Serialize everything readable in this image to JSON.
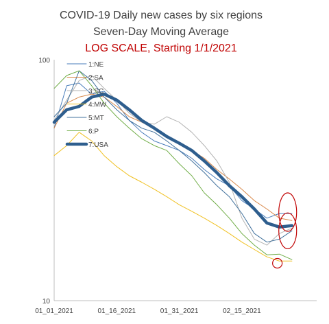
{
  "chart_data": {
    "type": "line",
    "title": "COVID-19 Daily new cases by six regions",
    "subtitle": "Seven-Day Moving Average",
    "note": "LOG SCALE, Starting 1/1/2021",
    "xlabel": "",
    "ylabel": "",
    "y_scale": "log",
    "ylim": [
      10,
      100
    ],
    "y_ticks": [
      {
        "value": 10,
        "label": "10"
      },
      {
        "value": 100,
        "label": "100"
      }
    ],
    "x_range": [
      "01_01_2021",
      "02_28_2021"
    ],
    "x_ticks": [
      {
        "x": "01_01_2021",
        "label": "01_01_2021"
      },
      {
        "x": "01_16_2021",
        "label": "01_16_2021"
      },
      {
        "x": "01_31_2021",
        "label": "01_31_2021"
      },
      {
        "x": "02_15_2021",
        "label": "02_15_2021"
      }
    ],
    "legend": "top-left",
    "grid": false,
    "series": [
      {
        "name": "1:NE",
        "color": "#4a7ebb",
        "width": 1,
        "x": [
          "01_01_2021",
          "01_04_2021",
          "01_07_2021",
          "01_10_2021",
          "01_13_2021",
          "01_16_2021",
          "01_19_2021",
          "01_22_2021",
          "01_25_2021",
          "01_28_2021",
          "01_31_2021",
          "02_03_2021",
          "02_06_2021",
          "02_09_2021",
          "02_12_2021",
          "02_15_2021",
          "02_18_2021",
          "02_21_2021",
          "02_24_2021",
          "02_27_2021"
        ],
        "values": [
          52,
          78,
          80,
          72,
          74,
          66,
          56,
          50,
          46,
          44,
          42,
          39,
          35,
          32,
          30,
          26,
          24,
          22,
          23,
          23
        ]
      },
      {
        "name": "2:SA",
        "color": "#d98a4c",
        "width": 1,
        "x": [
          "01_01_2021",
          "01_04_2021",
          "01_07_2021",
          "01_10_2021",
          "01_13_2021",
          "01_16_2021",
          "01_19_2021",
          "01_22_2021",
          "01_25_2021",
          "01_28_2021",
          "01_31_2021",
          "02_03_2021",
          "02_06_2021",
          "02_09_2021",
          "02_12_2021",
          "02_15_2021",
          "02_18_2021",
          "02_21_2021",
          "02_24_2021",
          "02_27_2021"
        ],
        "values": [
          52,
          66,
          70,
          72,
          70,
          64,
          58,
          55,
          52,
          48,
          45,
          42,
          39,
          35,
          32,
          29,
          26,
          24,
          22,
          21.5
        ]
      },
      {
        "name": "3:SC",
        "color": "#b3b3b3",
        "width": 1,
        "x": [
          "01_01_2021",
          "01_04_2021",
          "01_07_2021",
          "01_10_2021",
          "01_13_2021",
          "01_16_2021",
          "01_19_2021",
          "01_22_2021",
          "01_25_2021",
          "01_28_2021",
          "01_31_2021",
          "02_03_2021",
          "02_06_2021",
          "02_09_2021",
          "02_12_2021",
          "02_15_2021",
          "02_18_2021",
          "02_21_2021",
          "02_24_2021",
          "02_27_2021"
        ],
        "values": [
          56,
          68,
          82,
          86,
          76,
          68,
          60,
          55,
          54,
          58,
          55,
          50,
          44,
          38,
          31,
          22,
          18,
          17,
          19,
          20
        ]
      },
      {
        "name": "4:MW",
        "color": "#f0c020",
        "width": 1,
        "x": [
          "01_01_2021",
          "01_04_2021",
          "01_07_2021",
          "01_10_2021",
          "01_13_2021",
          "01_16_2021",
          "01_19_2021",
          "01_22_2021",
          "01_25_2021",
          "01_28_2021",
          "01_31_2021",
          "02_03_2021",
          "02_06_2021",
          "02_09_2021",
          "02_12_2021",
          "02_15_2021",
          "02_18_2021",
          "02_21_2021",
          "02_24_2021",
          "02_27_2021"
        ],
        "values": [
          40,
          44,
          50,
          46,
          40,
          36,
          33,
          31,
          29,
          27,
          25,
          23.5,
          22,
          20.5,
          19,
          17.5,
          16.3,
          15.2,
          14.6,
          14.6
        ]
      },
      {
        "name": "5:MT",
        "color": "#41719c",
        "width": 1,
        "x": [
          "01_01_2021",
          "01_04_2021",
          "01_07_2021",
          "01_10_2021",
          "01_13_2021",
          "01_16_2021",
          "01_19_2021",
          "01_22_2021",
          "01_25_2021",
          "01_28_2021",
          "01_31_2021",
          "02_03_2021",
          "02_06_2021",
          "02_09_2021",
          "02_12_2021",
          "02_15_2021",
          "02_18_2021",
          "02_21_2021",
          "02_24_2021",
          "02_27_2021"
        ],
        "values": [
          58,
          66,
          90,
          82,
          70,
          62,
          56,
          52,
          50,
          46,
          42,
          38,
          34,
          30,
          27,
          23,
          19,
          17.5,
          18,
          19.5
        ]
      },
      {
        "name": "6:P",
        "color": "#70ad47",
        "width": 1,
        "x": [
          "01_01_2021",
          "01_04_2021",
          "01_07_2021",
          "01_10_2021",
          "01_13_2021",
          "01_16_2021",
          "01_19_2021",
          "01_22_2021",
          "01_25_2021",
          "01_28_2021",
          "01_31_2021",
          "02_03_2021",
          "02_06_2021",
          "02_09_2021",
          "02_12_2021",
          "02_15_2021",
          "02_18_2021",
          "02_21_2021",
          "02_24_2021",
          "02_27_2021"
        ],
        "values": [
          76,
          86,
          90,
          78,
          66,
          58,
          52,
          47,
          44,
          42,
          37,
          33,
          28,
          25,
          22,
          19,
          17,
          15.5,
          15.6,
          14.8
        ]
      },
      {
        "name": "7:USA",
        "color": "#2e5e8e",
        "width": 4.5,
        "x": [
          "01_01_2021",
          "01_04_2021",
          "01_07_2021",
          "01_10_2021",
          "01_13_2021",
          "01_16_2021",
          "01_19_2021",
          "01_22_2021",
          "01_25_2021",
          "01_28_2021",
          "01_31_2021",
          "02_03_2021",
          "02_06_2021",
          "02_09_2021",
          "02_12_2021",
          "02_15_2021",
          "02_18_2021",
          "02_21_2021",
          "02_24_2021",
          "02_27_2021"
        ],
        "values": [
          55,
          62,
          64,
          70,
          72,
          68,
          62,
          56,
          52,
          48,
          45,
          42,
          38,
          34,
          30,
          27,
          24,
          21,
          20.2,
          20.5
        ]
      }
    ],
    "annotations": [
      {
        "shape": "ellipse",
        "color": "#c00000",
        "x": "02_25_2021",
        "y": 23
      },
      {
        "shape": "ellipse",
        "color": "#c00000",
        "x": "02_25_2021",
        "y": 19.5
      },
      {
        "shape": "circle",
        "color": "#c00000",
        "x": "02_24_2021",
        "y": 14.3
      }
    ]
  },
  "colors": {
    "title": "#404040",
    "note": "#c00000",
    "annotation": "#c00000"
  }
}
